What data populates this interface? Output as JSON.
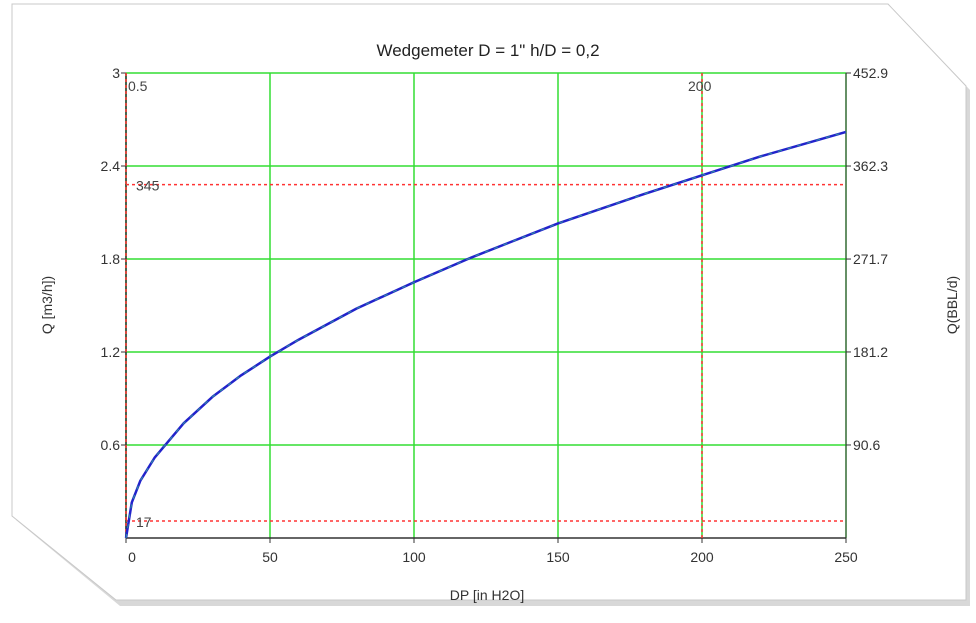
{
  "chart_data": {
    "type": "line",
    "title": "Wedgemeter D = 1\"  h/D = 0,2",
    "xlabel": "DP [in H2O]",
    "ylabel": "Q [m3/h])",
    "y2label": "Q(BBL/d)",
    "xlim": [
      0,
      250
    ],
    "ylim": [
      0,
      3
    ],
    "y2lim": [
      0,
      452.9
    ],
    "x_ticks": [
      0,
      50,
      100,
      150,
      200,
      250
    ],
    "x_tick_labels": [
      "0",
      "50",
      "100",
      "150",
      "200",
      "250"
    ],
    "y_ticks": [
      0.6,
      1.2,
      1.8,
      2.4,
      3
    ],
    "y_tick_labels": [
      "0.6",
      "1.2",
      "1.8",
      "2.4",
      "3"
    ],
    "y2_ticks": [
      90.6,
      181.2,
      271.7,
      362.3,
      452.9
    ],
    "y2_tick_labels": [
      "90.6",
      "181.2",
      "271.7",
      "362.3",
      "452.9"
    ],
    "grid": true,
    "grid_color": "#33dd33",
    "series": [
      {
        "color": "#2222cc",
        "x": [
          0,
          2,
          5,
          10,
          20,
          30,
          40,
          50,
          60,
          80,
          100,
          120,
          150,
          180,
          200,
          220,
          250
        ],
        "y": [
          0,
          0.23,
          0.37,
          0.52,
          0.74,
          0.91,
          1.05,
          1.17,
          1.28,
          1.48,
          1.65,
          1.81,
          2.03,
          2.22,
          2.34,
          2.46,
          2.62
        ]
      }
    ],
    "reference_lines": {
      "color": "#ff3333",
      "horizontal": [
        {
          "y": 2.28,
          "label": "345"
        },
        {
          "y": 0.11,
          "label": "17"
        }
      ],
      "vertical": [
        {
          "x": 0,
          "label": "0.5"
        },
        {
          "x": 200,
          "label": "200"
        }
      ]
    }
  }
}
